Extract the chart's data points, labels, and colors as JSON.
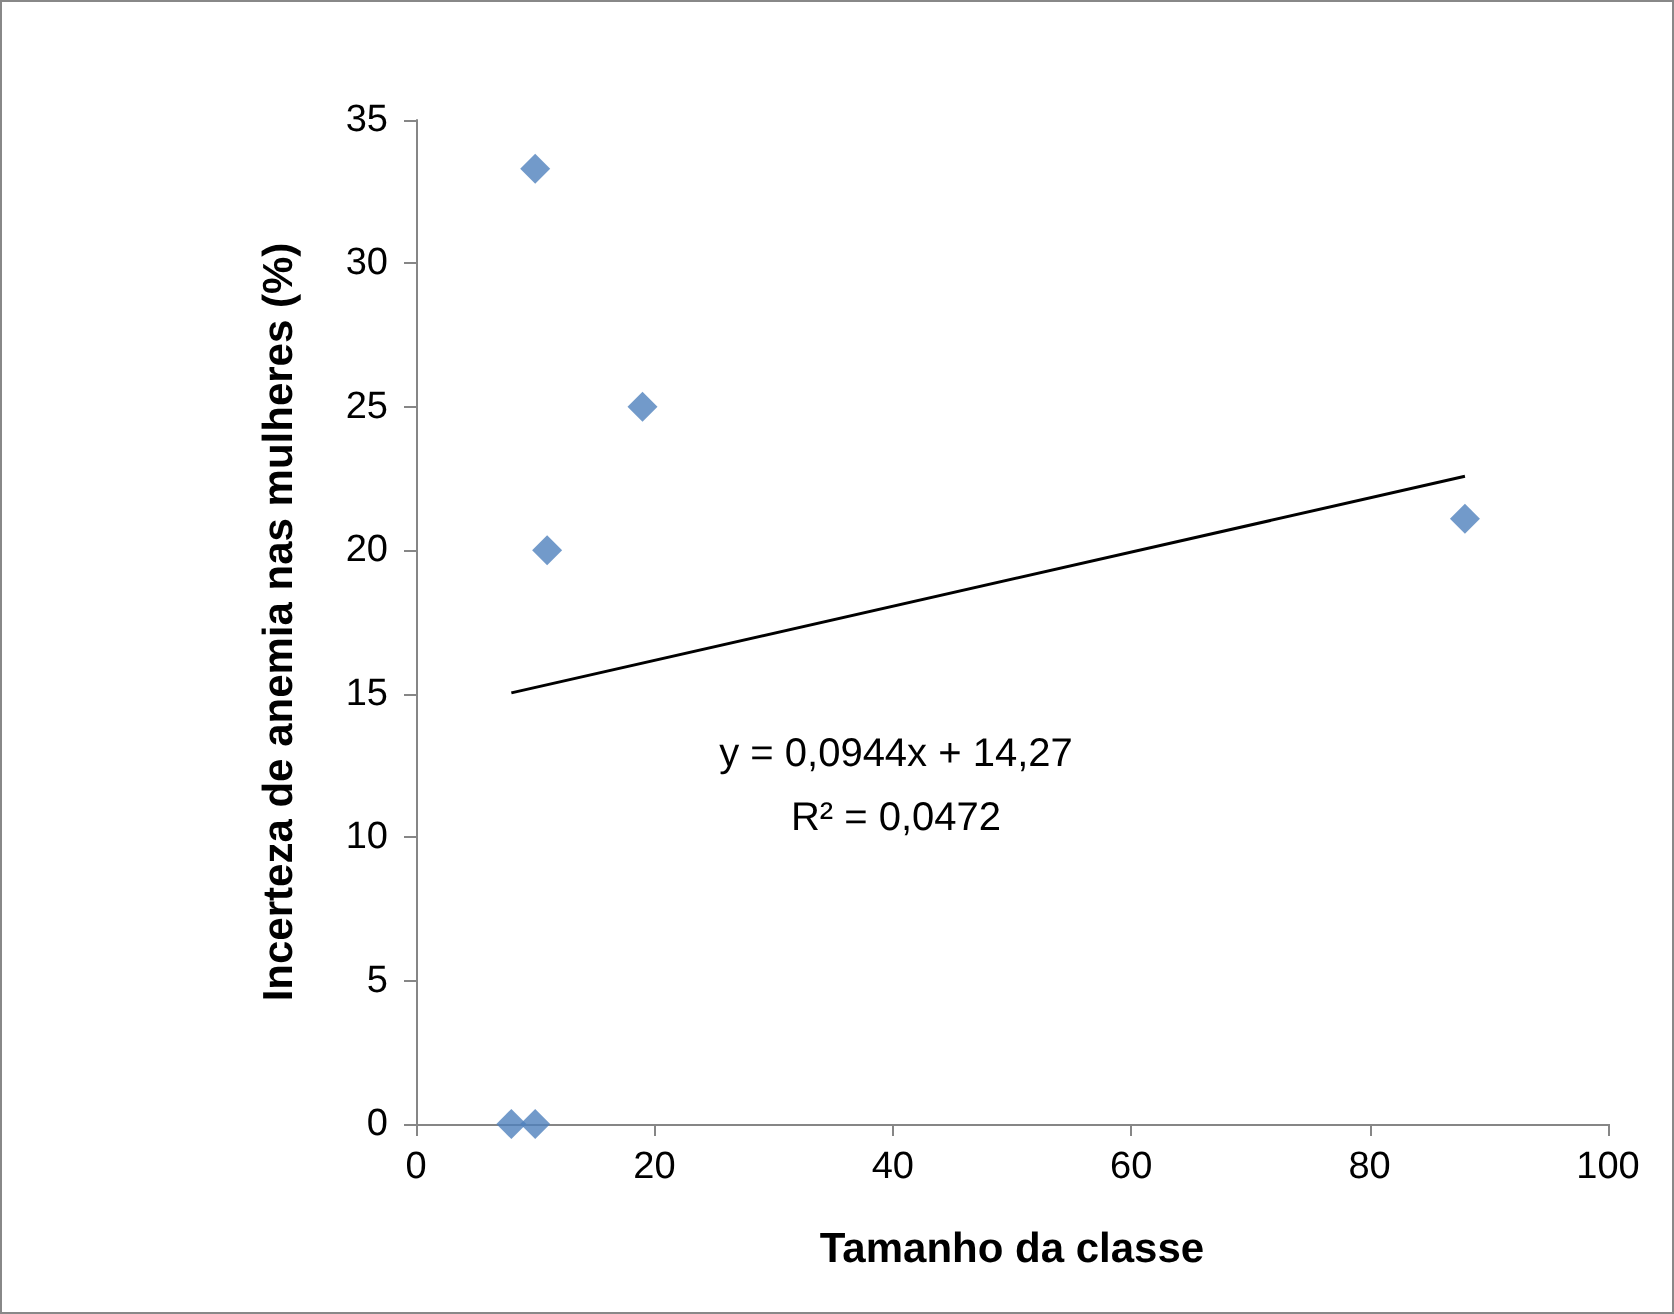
{
  "chart_data": {
    "type": "scatter",
    "xlabel": "Tamanho da classe",
    "ylabel": "Incerteza de anemia nas mulheres (%)",
    "xlim": [
      0,
      100
    ],
    "xticks": [
      0,
      20,
      40,
      60,
      80,
      100
    ],
    "ylim": [
      0,
      35
    ],
    "yticks": [
      0,
      5,
      10,
      15,
      20,
      25,
      30,
      35
    ],
    "grid": false,
    "marker": "diamond",
    "series": [
      {
        "color": "#4f81bd",
        "x": [
          8,
          10,
          10,
          11,
          19,
          88
        ],
        "values": [
          0,
          0,
          33.3,
          20,
          25,
          21.1
        ]
      },
      {
        "type": "line",
        "color": "#000000",
        "marker": "none",
        "line_style": "solid",
        "x": [
          8,
          88
        ],
        "values": [
          15.03,
          22.58
        ]
      }
    ],
    "annotations": [
      "y = 0,0944x + 14,27",
      "R² = 0,0472"
    ]
  }
}
